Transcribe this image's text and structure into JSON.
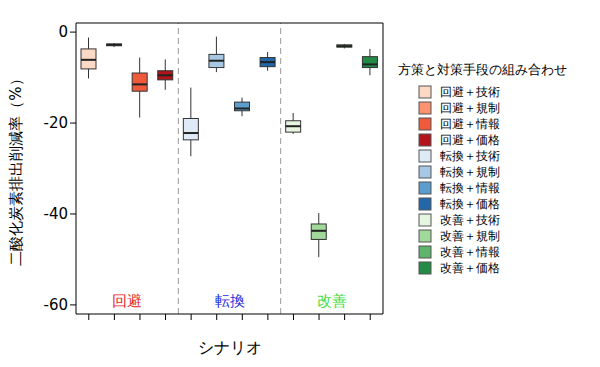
{
  "chart_data": {
    "type": "boxplot",
    "x_label": "シナリオ",
    "y_label": "二酸化炭素排出削減率（%）",
    "legend_title": "方策と対策手段の組み合わせ",
    "legend": "right",
    "tick_labels": "y",
    "categories": [
      null,
      null,
      null,
      null,
      null,
      null,
      null,
      null,
      null,
      null,
      null,
      null
    ],
    "ylim": [
      -62,
      2
    ],
    "yticks": [
      -60,
      -40,
      -20,
      0
    ],
    "groups": [
      {
        "label": "回避",
        "color": "#e8251e"
      },
      {
        "label": "転換",
        "color": "#1f2fdd"
      },
      {
        "label": "改善",
        "color": "#44dd44"
      }
    ],
    "series": [
      {
        "name": "回避＋技術",
        "color": "#fcd9c4",
        "whisker_low": -10.2,
        "q1": -8.1,
        "median": -6.1,
        "q3": -3.7,
        "whisker_high": -1.2
      },
      {
        "name": "回避＋規制",
        "color": "#fc9272",
        "whisker_low": -3.3,
        "q1": -3.0,
        "median": -2.8,
        "q3": -2.6,
        "whisker_high": -2.4
      },
      {
        "name": "回避＋情報",
        "color": "#ef5a3a",
        "whisker_low": -18.8,
        "q1": -13.0,
        "median": -11.5,
        "q3": -9.0,
        "whisker_high": -5.6
      },
      {
        "name": "回避＋価格",
        "color": "#b3141b",
        "whisker_low": -12.7,
        "q1": -10.5,
        "median": -9.5,
        "q3": -8.5,
        "whisker_high": -6.0
      },
      {
        "name": "転換＋技術",
        "color": "#deebf7",
        "whisker_low": -27.3,
        "q1": -23.7,
        "median": -22.2,
        "q3": -19.0,
        "whisker_high": -12.2
      },
      {
        "name": "転換＋規制",
        "color": "#a6c8e4",
        "whisker_low": -8.8,
        "q1": -7.8,
        "median": -6.3,
        "q3": -4.9,
        "whisker_high": -1.0
      },
      {
        "name": "転換＋情報",
        "color": "#5b9dcd",
        "whisker_low": -18.5,
        "q1": -17.3,
        "median": -16.8,
        "q3": -15.4,
        "whisker_high": -14.4
      },
      {
        "name": "転換＋価格",
        "color": "#2267a9",
        "whisker_low": -8.5,
        "q1": -7.6,
        "median": -6.6,
        "q3": -5.6,
        "whisker_high": -4.4
      },
      {
        "name": "改善＋技術",
        "color": "#e5f5e0",
        "whisker_low": -22.4,
        "q1": -22.0,
        "median": -20.7,
        "q3": -19.5,
        "whisker_high": -17.8
      },
      {
        "name": "改善＋規制",
        "color": "#a1d99b",
        "whisker_low": -49.5,
        "q1": -45.6,
        "median": -43.7,
        "q3": -42.2,
        "whisker_high": -39.8
      },
      {
        "name": "改善＋情報",
        "color": "#5fb46c",
        "whisker_low": -3.6,
        "q1": -3.3,
        "median": -3.1,
        "q3": -2.8,
        "whisker_high": -2.6
      },
      {
        "name": "改善＋価格",
        "color": "#238b45",
        "whisker_low": -9.5,
        "q1": -7.8,
        "median": -7.1,
        "q3": -5.4,
        "whisker_high": -3.7
      }
    ]
  }
}
